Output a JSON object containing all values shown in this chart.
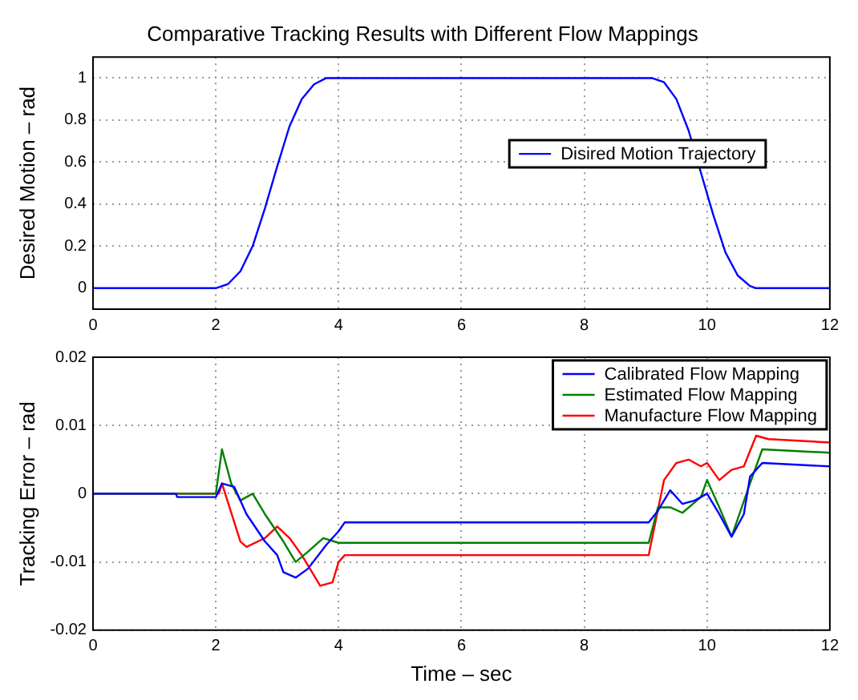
{
  "chart_data": [
    {
      "type": "line",
      "title": "Comparative Tracking Results with Different Flow Mappings",
      "ylabel": "Desired Motion – rad",
      "xlim": [
        0,
        12
      ],
      "xticks": [
        0,
        2,
        4,
        6,
        8,
        10,
        12
      ],
      "ylim": [
        -0.1,
        1.1
      ],
      "yticks": [
        0,
        0.2,
        0.4,
        0.6,
        0.8,
        1
      ],
      "grid": true,
      "legend": "right",
      "series": [
        {
          "name": "Disired Motion Trajectory",
          "color": "#0000ff",
          "x": [
            0,
            2,
            2.2,
            2.4,
            2.6,
            2.8,
            3.0,
            3.2,
            3.4,
            3.6,
            3.8,
            9.1,
            9.3,
            9.5,
            9.7,
            9.9,
            10.1,
            10.3,
            10.5,
            10.7,
            10.8,
            12
          ],
          "values": [
            0,
            0,
            0.02,
            0.08,
            0.2,
            0.38,
            0.58,
            0.77,
            0.9,
            0.97,
            1,
            1,
            0.98,
            0.9,
            0.75,
            0.55,
            0.35,
            0.17,
            0.06,
            0.01,
            0,
            0
          ]
        }
      ]
    },
    {
      "type": "line",
      "xlabel": "Time – sec",
      "ylabel": "Tracking Error – rad",
      "xlim": [
        0,
        12
      ],
      "xticks": [
        0,
        2,
        4,
        6,
        8,
        10,
        12
      ],
      "ylim": [
        -0.02,
        0.02
      ],
      "yticks": [
        -0.02,
        -0.01,
        0,
        0.01,
        0.02
      ],
      "grid": true,
      "legend": "top right",
      "series": [
        {
          "name": "Calibrated Flow Mapping",
          "color": "#0000ff",
          "x": [
            0,
            1.35,
            1.37,
            2.0,
            2.1,
            2.3,
            2.5,
            2.8,
            3.0,
            3.1,
            3.3,
            3.5,
            3.8,
            4.0,
            4.1,
            9.05,
            9.2,
            9.4,
            9.6,
            9.8,
            10.0,
            10.2,
            10.4,
            10.6,
            10.7,
            10.9,
            12
          ],
          "values": [
            0,
            0,
            -0.0005,
            -0.0005,
            0.0015,
            0.001,
            -0.003,
            -0.007,
            -0.009,
            -0.0115,
            -0.0123,
            -0.011,
            -0.0075,
            -0.0055,
            -0.0042,
            -0.0042,
            -0.0025,
            0.0005,
            -0.0015,
            -0.001,
            0,
            -0.003,
            -0.0063,
            -0.003,
            0.0025,
            0.0045,
            0.004
          ]
        },
        {
          "name": "Estimated Flow Mapping",
          "color": "#008000",
          "x": [
            0,
            2.0,
            2.1,
            2.25,
            2.4,
            2.6,
            2.8,
            3.1,
            3.3,
            3.5,
            3.75,
            4.0,
            9.05,
            9.2,
            9.4,
            9.6,
            9.9,
            10.0,
            10.2,
            10.4,
            10.7,
            10.9,
            12
          ],
          "values": [
            0,
            0,
            0.0065,
            0.0015,
            -0.001,
            0,
            -0.003,
            -0.007,
            -0.01,
            -0.0085,
            -0.0065,
            -0.0072,
            -0.0072,
            -0.002,
            -0.002,
            -0.0028,
            -0.0005,
            0.002,
            -0.002,
            -0.0063,
            0.0015,
            0.0065,
            0.006
          ]
        },
        {
          "name": "Manufacture Flow Mapping",
          "color": "#ff0000",
          "x": [
            0,
            2.05,
            2.1,
            2.4,
            2.5,
            2.8,
            3.0,
            3.2,
            3.4,
            3.7,
            3.9,
            4.0,
            4.1,
            9.05,
            9.3,
            9.5,
            9.7,
            9.9,
            10.0,
            10.2,
            10.4,
            10.6,
            10.8,
            11.0,
            12
          ],
          "values": [
            0,
            0,
            0.0015,
            -0.007,
            -0.0078,
            -0.0065,
            -0.0048,
            -0.0065,
            -0.009,
            -0.0135,
            -0.013,
            -0.01,
            -0.009,
            -0.009,
            0.002,
            0.0045,
            0.005,
            0.004,
            0.0045,
            0.002,
            0.0035,
            0.004,
            0.0085,
            0.008,
            0.0075
          ]
        }
      ]
    }
  ]
}
